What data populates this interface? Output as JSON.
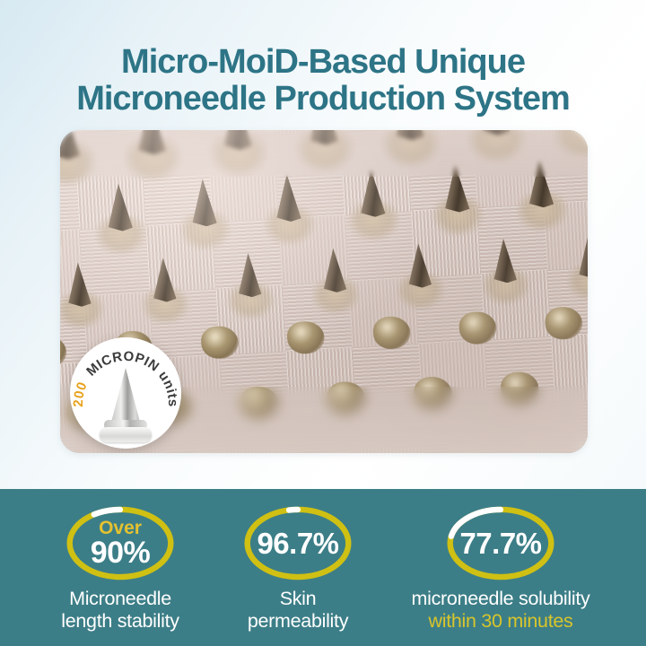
{
  "title": {
    "line1": "Micro-MoiD-Based Unique",
    "line2": "Microneedle Production System"
  },
  "photo": {
    "description": "close-up of microneedle mold array",
    "badge": {
      "count": "200",
      "label": "MICROPIN units"
    }
  },
  "stats": [
    {
      "prefix": "Over",
      "value": "90%",
      "percent": 90,
      "label_lines": [
        "Microneedle",
        "length stability"
      ]
    },
    {
      "value": "96.7%",
      "percent": 96.7,
      "label_lines": [
        "Skin",
        "permeability"
      ]
    },
    {
      "value": "77.7%",
      "percent": 77.7,
      "label_lines": [
        "microneedle solubility"
      ],
      "label_highlight": "within 30 minutes"
    }
  ],
  "colors": {
    "title_teal": "#2d7486",
    "section_teal": "#3c7e87",
    "ring_yellow": "#cfc013",
    "accent_yellow": "#e4c230",
    "highlight_yellow": "#d8c52b",
    "badge_orange": "#e8a21c",
    "photo_beige": "#d8c9c2"
  }
}
